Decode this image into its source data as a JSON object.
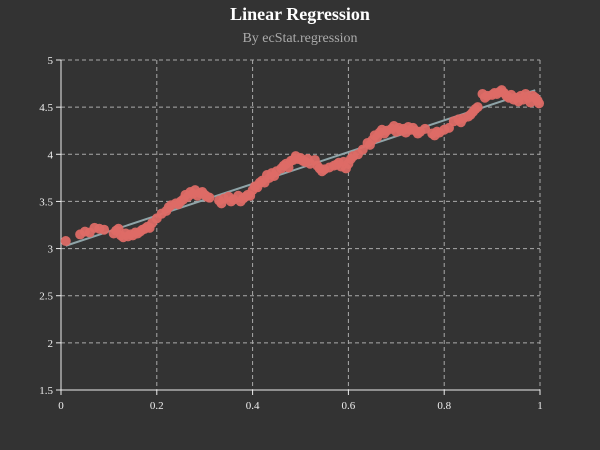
{
  "chart_data": {
    "type": "scatter",
    "title": "Linear Regression",
    "subtitle": "By ecStat.regression",
    "xlabel": "",
    "ylabel": "",
    "xlim": [
      0,
      1
    ],
    "ylim": [
      1.5,
      5
    ],
    "x_ticks": [
      "0",
      "0.2",
      "0.4",
      "0.6",
      "0.8",
      "1"
    ],
    "x_tick_values": [
      0,
      0.2,
      0.4,
      0.6,
      0.8,
      1
    ],
    "y_ticks": [
      "1.5",
      "2",
      "2.5",
      "3",
      "3.5",
      "4",
      "4.5",
      "5"
    ],
    "y_tick_values": [
      1.5,
      2,
      2.5,
      3,
      3.5,
      4,
      4.5,
      5
    ],
    "grid": true,
    "grid_style": "dashed",
    "legend": "none",
    "colors": {
      "background": "#333333",
      "points": "#dd6b66",
      "regression_line": "#8fa4a8",
      "grid": "#aaaaaa",
      "axis": "#eeeeee"
    },
    "series": [
      {
        "type": "scatter",
        "points": [
          [
            0.01,
            3.08
          ],
          [
            0.04,
            3.15
          ],
          [
            0.05,
            3.18
          ],
          [
            0.06,
            3.17
          ],
          [
            0.07,
            3.22
          ],
          [
            0.08,
            3.21
          ],
          [
            0.09,
            3.2
          ],
          [
            0.11,
            3.16
          ],
          [
            0.115,
            3.19
          ],
          [
            0.12,
            3.21
          ],
          [
            0.125,
            3.14
          ],
          [
            0.13,
            3.12
          ],
          [
            0.135,
            3.16
          ],
          [
            0.14,
            3.13
          ],
          [
            0.145,
            3.15
          ],
          [
            0.15,
            3.14
          ],
          [
            0.155,
            3.17
          ],
          [
            0.16,
            3.16
          ],
          [
            0.165,
            3.18
          ],
          [
            0.17,
            3.2
          ],
          [
            0.175,
            3.21
          ],
          [
            0.18,
            3.23
          ],
          [
            0.185,
            3.22
          ],
          [
            0.19,
            3.27
          ],
          [
            0.2,
            3.32
          ],
          [
            0.21,
            3.37
          ],
          [
            0.22,
            3.4
          ],
          [
            0.225,
            3.44
          ],
          [
            0.23,
            3.46
          ],
          [
            0.24,
            3.48
          ],
          [
            0.245,
            3.47
          ],
          [
            0.25,
            3.5
          ],
          [
            0.255,
            3.52
          ],
          [
            0.26,
            3.57
          ],
          [
            0.265,
            3.55
          ],
          [
            0.27,
            3.6
          ],
          [
            0.275,
            3.58
          ],
          [
            0.28,
            3.62
          ],
          [
            0.285,
            3.56
          ],
          [
            0.29,
            3.59
          ],
          [
            0.295,
            3.6
          ],
          [
            0.3,
            3.57
          ],
          [
            0.305,
            3.55
          ],
          [
            0.31,
            3.54
          ],
          [
            0.33,
            3.51
          ],
          [
            0.335,
            3.48
          ],
          [
            0.34,
            3.53
          ],
          [
            0.35,
            3.55
          ],
          [
            0.355,
            3.5
          ],
          [
            0.36,
            3.52
          ],
          [
            0.37,
            3.56
          ],
          [
            0.375,
            3.5
          ],
          [
            0.38,
            3.53
          ],
          [
            0.385,
            3.55
          ],
          [
            0.39,
            3.57
          ],
          [
            0.395,
            3.56
          ],
          [
            0.4,
            3.62
          ],
          [
            0.405,
            3.66
          ],
          [
            0.41,
            3.65
          ],
          [
            0.415,
            3.7
          ],
          [
            0.42,
            3.72
          ],
          [
            0.425,
            3.7
          ],
          [
            0.43,
            3.78
          ],
          [
            0.435,
            3.75
          ],
          [
            0.44,
            3.8
          ],
          [
            0.445,
            3.77
          ],
          [
            0.45,
            3.82
          ],
          [
            0.46,
            3.85
          ],
          [
            0.465,
            3.88
          ],
          [
            0.47,
            3.9
          ],
          [
            0.475,
            3.86
          ],
          [
            0.48,
            3.93
          ],
          [
            0.485,
            3.94
          ],
          [
            0.49,
            3.98
          ],
          [
            0.495,
            3.95
          ],
          [
            0.5,
            3.96
          ],
          [
            0.505,
            3.93
          ],
          [
            0.51,
            3.92
          ],
          [
            0.515,
            3.95
          ],
          [
            0.52,
            3.9
          ],
          [
            0.53,
            3.94
          ],
          [
            0.535,
            3.88
          ],
          [
            0.54,
            3.85
          ],
          [
            0.545,
            3.82
          ],
          [
            0.55,
            3.84
          ],
          [
            0.56,
            3.86
          ],
          [
            0.57,
            3.88
          ],
          [
            0.575,
            3.89
          ],
          [
            0.58,
            3.91
          ],
          [
            0.585,
            3.87
          ],
          [
            0.59,
            3.92
          ],
          [
            0.595,
            3.85
          ],
          [
            0.6,
            3.9
          ],
          [
            0.605,
            3.95
          ],
          [
            0.61,
            3.98
          ],
          [
            0.62,
            4.0
          ],
          [
            0.63,
            4.05
          ],
          [
            0.64,
            4.12
          ],
          [
            0.645,
            4.1
          ],
          [
            0.65,
            4.15
          ],
          [
            0.655,
            4.2
          ],
          [
            0.66,
            4.18
          ],
          [
            0.665,
            4.23
          ],
          [
            0.67,
            4.26
          ],
          [
            0.675,
            4.22
          ],
          [
            0.68,
            4.25
          ],
          [
            0.69,
            4.27
          ],
          [
            0.695,
            4.3
          ],
          [
            0.7,
            4.24
          ],
          [
            0.705,
            4.28
          ],
          [
            0.71,
            4.25
          ],
          [
            0.715,
            4.27
          ],
          [
            0.72,
            4.23
          ],
          [
            0.725,
            4.29
          ],
          [
            0.73,
            4.26
          ],
          [
            0.735,
            4.28
          ],
          [
            0.74,
            4.25
          ],
          [
            0.745,
            4.22
          ],
          [
            0.75,
            4.24
          ],
          [
            0.76,
            4.27
          ],
          [
            0.775,
            4.22
          ],
          [
            0.78,
            4.2
          ],
          [
            0.785,
            4.24
          ],
          [
            0.79,
            4.23
          ],
          [
            0.8,
            4.26
          ],
          [
            0.81,
            4.28
          ],
          [
            0.82,
            4.35
          ],
          [
            0.83,
            4.37
          ],
          [
            0.835,
            4.34
          ],
          [
            0.84,
            4.38
          ],
          [
            0.85,
            4.4
          ],
          [
            0.855,
            4.42
          ],
          [
            0.86,
            4.45
          ],
          [
            0.865,
            4.48
          ],
          [
            0.87,
            4.5
          ],
          [
            0.88,
            4.64
          ],
          [
            0.885,
            4.6
          ],
          [
            0.89,
            4.62
          ],
          [
            0.9,
            4.63
          ],
          [
            0.905,
            4.65
          ],
          [
            0.91,
            4.64
          ],
          [
            0.915,
            4.66
          ],
          [
            0.92,
            4.68
          ],
          [
            0.925,
            4.65
          ],
          [
            0.93,
            4.62
          ],
          [
            0.935,
            4.6
          ],
          [
            0.94,
            4.63
          ],
          [
            0.945,
            4.58
          ],
          [
            0.95,
            4.6
          ],
          [
            0.955,
            4.56
          ],
          [
            0.96,
            4.62
          ],
          [
            0.965,
            4.58
          ],
          [
            0.97,
            4.64
          ],
          [
            0.975,
            4.6
          ],
          [
            0.98,
            4.55
          ],
          [
            0.985,
            4.62
          ],
          [
            0.99,
            4.6
          ],
          [
            0.995,
            4.57
          ],
          [
            0.998,
            4.54
          ]
        ]
      },
      {
        "type": "line",
        "points": [
          [
            0.01,
            3.03
          ],
          [
            0.99,
            4.68
          ]
        ]
      }
    ]
  }
}
